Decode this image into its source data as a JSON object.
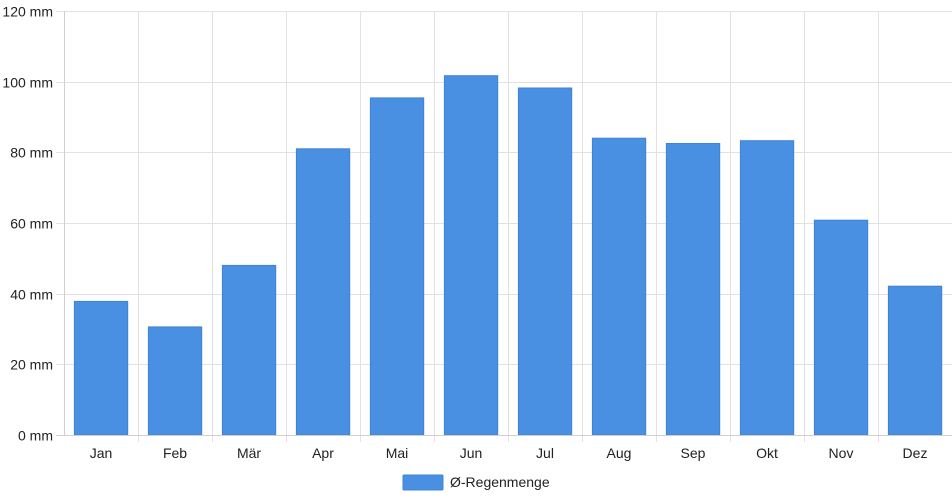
{
  "chart_data": {
    "type": "bar",
    "categories": [
      "Jan",
      "Feb",
      "Mär",
      "Apr",
      "Mai",
      "Jun",
      "Jul",
      "Aug",
      "Sep",
      "Okt",
      "Nov",
      "Dez"
    ],
    "series": [
      {
        "name": "Ø-Regenmenge",
        "color": "#4a90e2",
        "values": [
          37.8,
          30.6,
          48.0,
          81.0,
          95.4,
          101.7,
          98.2,
          84.0,
          82.5,
          83.3,
          60.8,
          42.1
        ]
      }
    ],
    "y_ticks": [
      "0 mm",
      "20 mm",
      "40 mm",
      "60 mm",
      "80 mm",
      "100 mm",
      "120 mm"
    ],
    "ylim": [
      0,
      120
    ],
    "y_unit": "mm",
    "grid": true,
    "legend_position": "bottom-center"
  }
}
